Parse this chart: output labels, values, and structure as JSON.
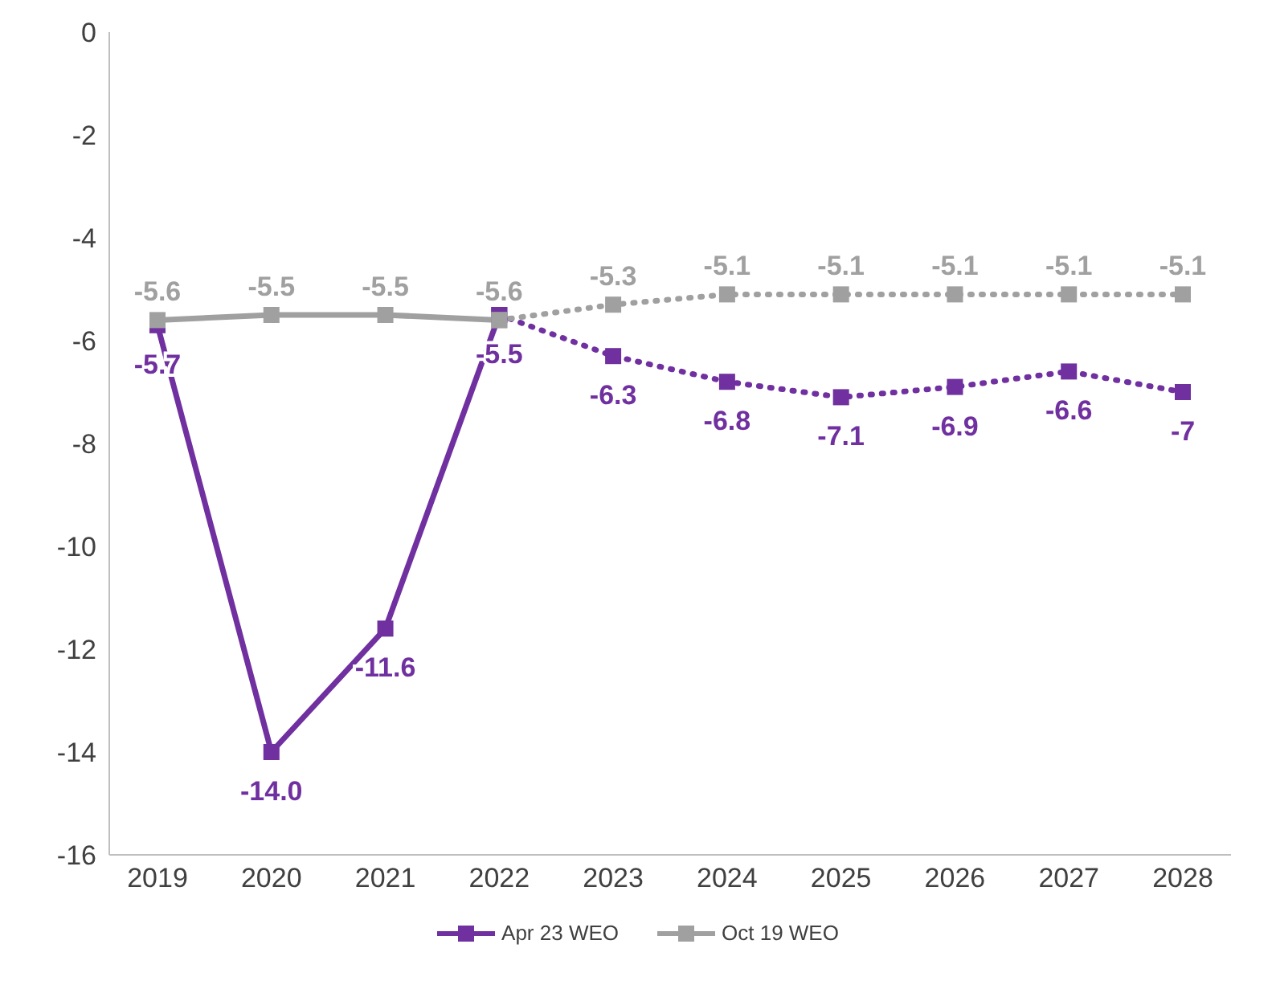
{
  "chart_data": {
    "type": "line",
    "categories": [
      "2019",
      "2020",
      "2021",
      "2022",
      "2023",
      "2024",
      "2025",
      "2026",
      "2027",
      "2028"
    ],
    "series": [
      {
        "name": "Apr 23 WEO",
        "color": "#7030a0",
        "line_style": "solid",
        "marker": "square",
        "values": [
          -5.7,
          -14.0,
          -11.6,
          -5.5,
          null,
          null,
          null,
          null,
          null,
          null
        ],
        "value_labels": [
          "-5.7",
          "-14.0",
          "-11.6",
          "-5.5",
          null,
          null,
          null,
          null,
          null,
          null
        ]
      },
      {
        "color": "#7030a0",
        "line_style": "dotted",
        "marker": "square",
        "values": [
          null,
          null,
          null,
          -5.5,
          -6.3,
          -6.8,
          -7.1,
          -6.9,
          -6.6,
          -7
        ],
        "value_labels": [
          null,
          null,
          null,
          null,
          "-6.3",
          "-6.8",
          "-7.1",
          "-6.9",
          "-6.6",
          "-7"
        ]
      },
      {
        "name": "Oct 19 WEO",
        "color": "#a0a0a0",
        "line_style": "solid",
        "marker": "square",
        "values": [
          -5.6,
          -5.5,
          -5.5,
          -5.6,
          null,
          null,
          null,
          null,
          null,
          null
        ],
        "value_labels": [
          "-5.6",
          "-5.5",
          "-5.5",
          "-5.6",
          null,
          null,
          null,
          null,
          null,
          null
        ]
      },
      {
        "color": "#a0a0a0",
        "line_style": "dotted",
        "marker": "square",
        "values": [
          null,
          null,
          null,
          -5.6,
          -5.3,
          -5.1,
          -5.1,
          -5.1,
          -5.1,
          -5.1
        ],
        "value_labels": [
          null,
          null,
          null,
          null,
          "-5.3",
          "-5.1",
          "-5.1",
          "-5.1",
          "-5.1",
          "-5.1"
        ]
      }
    ],
    "ylim": [
      -16,
      0
    ],
    "yticks": [
      0,
      -2,
      -4,
      -6,
      -8,
      -10,
      -12,
      -14,
      -16
    ],
    "grid": false,
    "legend": "bottom"
  }
}
